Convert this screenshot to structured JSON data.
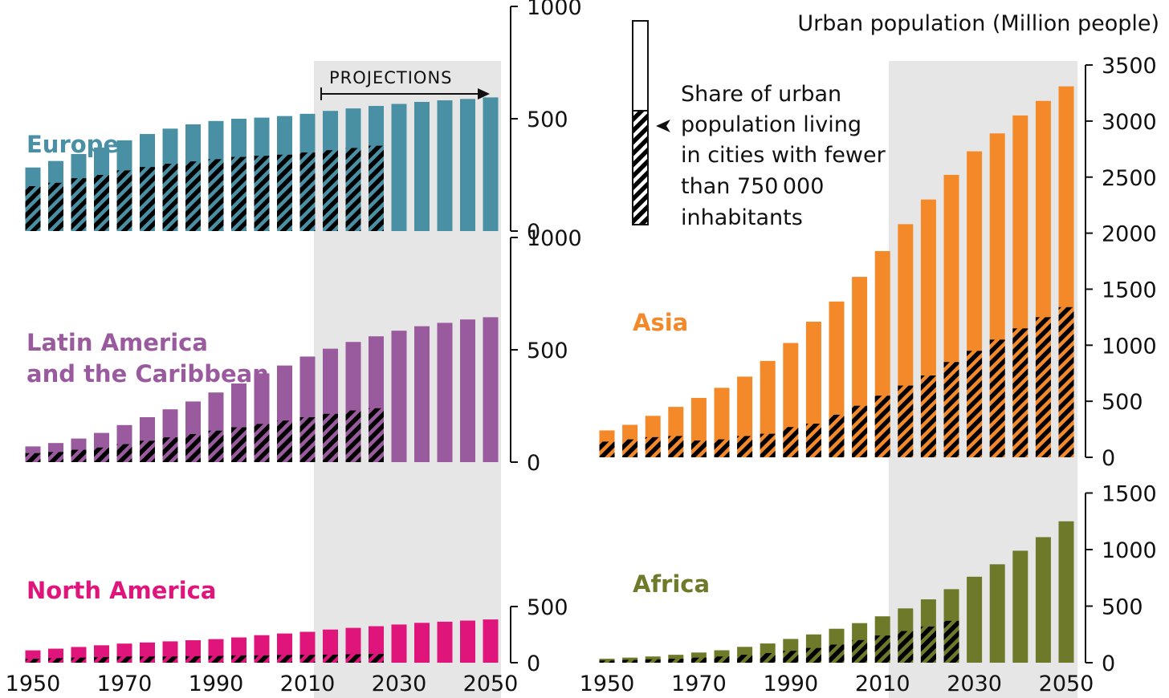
{
  "chart_data": {
    "type": "bar",
    "unit_label": "Urban population (Million people)",
    "projections_label": "PROJECTIONS",
    "projection_start_year": 2015,
    "legend": {
      "label_lines": [
        "Share of urban",
        "population living",
        "in cities with fewer",
        "than 750 000",
        "inhabitants"
      ]
    },
    "x": [
      1950,
      1955,
      1960,
      1965,
      1970,
      1975,
      1980,
      1985,
      1990,
      1995,
      2000,
      2005,
      2010,
      2015,
      2020,
      2025,
      2030,
      2035,
      2040,
      2045,
      2050
    ],
    "x_tick_labels": [
      "1950",
      "1970",
      "1990",
      "2010",
      "2030",
      "2050"
    ],
    "regions": [
      {
        "name": "Europe",
        "color": "#4a90a4",
        "yticks": [
          0,
          500,
          1000
        ],
        "ytick_labels": [
          "0",
          "500",
          "1000"
        ],
        "ylim": [
          0,
          1000
        ],
        "total": [
          283,
          312,
          343,
          372,
          404,
          432,
          456,
          475,
          490,
          500,
          505,
          512,
          522,
          535,
          546,
          557,
          566,
          575,
          582,
          588,
          595
        ],
        "small": [
          200,
          215,
          235,
          250,
          270,
          285,
          300,
          310,
          320,
          330,
          335,
          340,
          350,
          360,
          370,
          380,
          null,
          null,
          null,
          null,
          null
        ]
      },
      {
        "name": "Latin America and the Caribbean",
        "color": "#9a5a9e",
        "yticks": [
          0,
          500,
          1000
        ],
        "ytick_labels": [
          "0",
          "500",
          "1000"
        ],
        "ylim": [
          0,
          1000
        ],
        "total_label_lines": [
          "Latin America",
          "and the Caribbean"
        ],
        "total": [
          70,
          85,
          105,
          130,
          165,
          200,
          235,
          270,
          310,
          350,
          395,
          430,
          470,
          505,
          535,
          560,
          585,
          605,
          620,
          635,
          645
        ],
        "small": [
          40,
          45,
          55,
          65,
          80,
          95,
          110,
          125,
          140,
          155,
          170,
          185,
          200,
          215,
          230,
          240,
          null,
          null,
          null,
          null,
          null
        ]
      },
      {
        "name": "North America",
        "color": "#e0157c",
        "yticks": [
          0,
          500
        ],
        "ytick_labels": [
          "0",
          "500"
        ],
        "ylim": [
          0,
          500
        ],
        "total": [
          110,
          125,
          140,
          155,
          170,
          180,
          190,
          200,
          210,
          225,
          245,
          260,
          275,
          295,
          310,
          325,
          340,
          355,
          365,
          375,
          385
        ],
        "small": [
          35,
          40,
          45,
          50,
          55,
          55,
          55,
          58,
          60,
          65,
          65,
          68,
          70,
          72,
          75,
          78,
          null,
          null,
          null,
          null,
          null
        ]
      },
      {
        "name": "Asia",
        "color": "#f4892a",
        "yticks": [
          0,
          500,
          1000,
          1500,
          2000,
          2500,
          3000,
          3500
        ],
        "ytick_labels": [
          "0",
          "500",
          "1000",
          "1500",
          "2000",
          "2500",
          "3000",
          "3500"
        ],
        "ylim": [
          0,
          3500
        ],
        "total": [
          240,
          290,
          370,
          450,
          530,
          620,
          720,
          860,
          1020,
          1210,
          1390,
          1610,
          1840,
          2080,
          2300,
          2520,
          2730,
          2890,
          3050,
          3180,
          3310
        ],
        "small": [
          140,
          160,
          180,
          190,
          150,
          160,
          190,
          210,
          270,
          300,
          380,
          460,
          550,
          640,
          730,
          850,
          950,
          1050,
          1150,
          1250,
          1340
        ]
      },
      {
        "name": "Africa",
        "color": "#6e7a2a",
        "yticks": [
          0,
          500,
          1000,
          1500
        ],
        "ytick_labels": [
          "0",
          "500",
          "1000",
          "1500"
        ],
        "ylim": [
          0,
          1500
        ],
        "total": [
          35,
          45,
          55,
          70,
          90,
          110,
          140,
          170,
          210,
          250,
          300,
          350,
          410,
          480,
          560,
          650,
          760,
          870,
          990,
          1110,
          1250
        ],
        "small": [
          20,
          25,
          30,
          35,
          45,
          55,
          70,
          85,
          105,
          130,
          160,
          200,
          240,
          280,
          320,
          370,
          null,
          null,
          null,
          null,
          null
        ]
      }
    ]
  }
}
